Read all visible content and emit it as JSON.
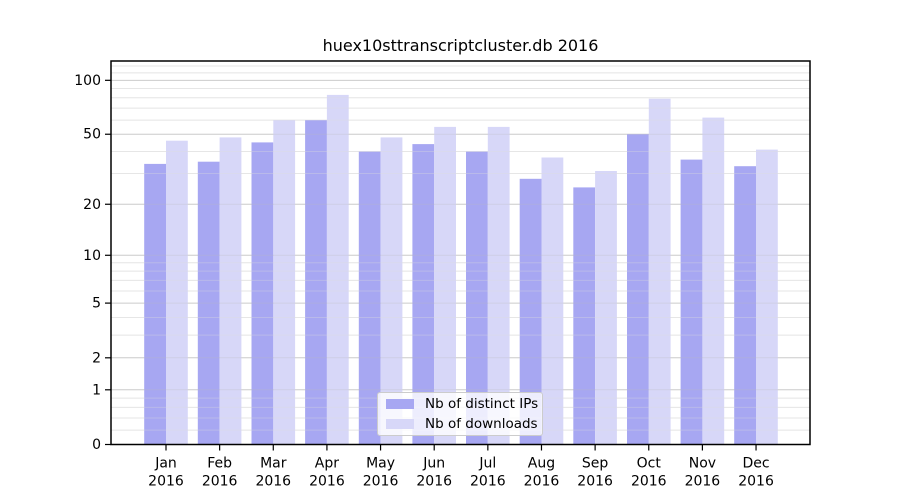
{
  "title": "huex10sttranscriptcluster.db 2016",
  "chart_data": {
    "type": "bar",
    "title": "huex10sttranscriptcluster.db 2016",
    "categories": [
      "Jan 2016",
      "Feb 2016",
      "Mar 2016",
      "Apr 2016",
      "May 2016",
      "Jun 2016",
      "Jul 2016",
      "Aug 2016",
      "Sep 2016",
      "Oct 2016",
      "Nov 2016",
      "Dec 2016"
    ],
    "x_tick_months": [
      "Jan",
      "Feb",
      "Mar",
      "Apr",
      "May",
      "Jun",
      "Jul",
      "Aug",
      "Sep",
      "Oct",
      "Nov",
      "Dec"
    ],
    "x_tick_year": "2016",
    "series": [
      {
        "name": "Nb of distinct IPs",
        "color": "#a7a7f2",
        "values": [
          34,
          35,
          45,
          60,
          40,
          44,
          40,
          28,
          25,
          50,
          36,
          33
        ]
      },
      {
        "name": "Nb of downloads",
        "color": "#d7d7f8",
        "values": [
          46,
          48,
          60,
          83,
          48,
          55,
          55,
          37,
          31,
          79,
          62,
          41
        ]
      }
    ],
    "yscale": "log10(value+1)",
    "ylim": [
      0,
      128
    ],
    "yticks": [
      100,
      50,
      20,
      10,
      5,
      2,
      1,
      0
    ],
    "yticks_minor": [
      0.2,
      0.4,
      0.6,
      0.8,
      3,
      4,
      6,
      7,
      8,
      9,
      30,
      40,
      60,
      70,
      80,
      90,
      110,
      120
    ],
    "grid": "horizontal",
    "legend": {
      "position": "lower center",
      "entries": [
        "Nb of distinct IPs",
        "Nb of downloads"
      ]
    },
    "colors": {
      "axis": "#000000",
      "text": "#000000",
      "grid_major": "#d6d6d6",
      "grid_minor": "#ebebeb",
      "background": "#ffffff"
    }
  }
}
